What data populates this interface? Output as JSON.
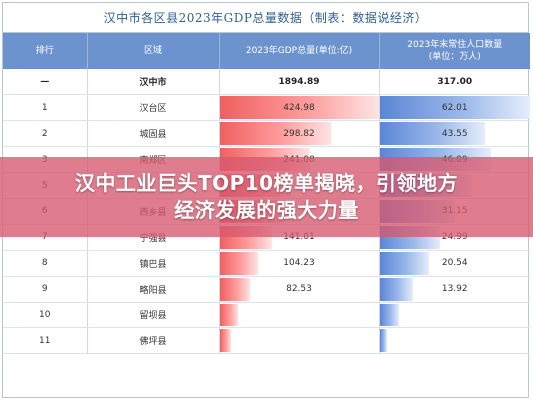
{
  "table": {
    "title": "汉中市各区县2023年GDP总量数据（制表：数据说经济）",
    "headers": {
      "rank": "排行",
      "region": "区域",
      "gdp": "2023年GDP总量(单位:亿)",
      "pop_line1": "2023年末常住人口数量",
      "pop_line2": "(单位：万人)"
    },
    "rows": [
      {
        "rank": "—",
        "region": "汉中市",
        "gdp": "1894.89",
        "gdp_value": 1894.89,
        "pop": "317.00",
        "pop_value": 317.0
      },
      {
        "rank": "1",
        "region": "汉台区",
        "gdp": "424.98",
        "gdp_value": 424.98,
        "pop": "62.01",
        "pop_value": 62.01
      },
      {
        "rank": "2",
        "region": "城固县",
        "gdp": "298.82",
        "gdp_value": 298.82,
        "pop": "43.55",
        "pop_value": 43.55
      },
      {
        "rank": "3",
        "region": "南郑区",
        "gdp": "241.08",
        "gdp_value": 241.08,
        "pop": "46.09",
        "pop_value": 46.09
      },
      {
        "rank": "5",
        "region": "",
        "gdp": "",
        "gdp_value": 190,
        "pop": "",
        "pop_value": 38
      },
      {
        "rank": "6",
        "region": "西乡县",
        "gdp": "",
        "gdp_value": 176,
        "pop": "31.15",
        "pop_value": 31.15
      },
      {
        "rank": "7",
        "region": "宁强县",
        "gdp": "141.01",
        "gdp_value": 141.01,
        "pop": "24.99",
        "pop_value": 24.99
      },
      {
        "rank": "8",
        "region": "镇巴县",
        "gdp": "104.23",
        "gdp_value": 104.23,
        "pop": "20.54",
        "pop_value": 20.54
      },
      {
        "rank": "9",
        "region": "略阳县",
        "gdp": "82.53",
        "gdp_value": 82.53,
        "pop": "13.92",
        "pop_value": 13.92
      },
      {
        "rank": "10",
        "region": "留坝县",
        "gdp": "",
        "gdp_value": 50,
        "pop": "",
        "pop_value": 8
      },
      {
        "rank": "11",
        "region": "佛坪县",
        "gdp": "",
        "gdp_value": 30,
        "pop": "",
        "pop_value": 3
      }
    ],
    "colors": {
      "header_bg": "#6d93cf",
      "gdp_bar": "#f06060",
      "pop_bar": "#5b86d6",
      "title_text": "#2f5f96"
    }
  },
  "banner": {
    "line1": "汉中工业巨头TOP10榜单揭晓，引领地方",
    "line2": "经济发展的强大力量",
    "color": "#d6586e"
  }
}
